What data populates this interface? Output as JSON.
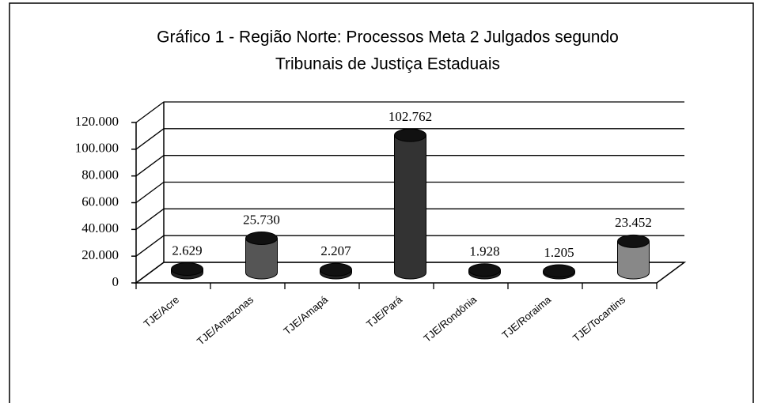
{
  "chart_data": {
    "type": "bar3d",
    "title": "Gráfico 1 - Região Norte: Processos Meta 2 Julgados segundo",
    "subtitle": "Tribunais de Justiça Estaduais",
    "categories": [
      "TJE/Acre",
      "TJE/Amazonas",
      "TJE/Amapá",
      "TJE/Pará",
      "TJE/Rondônia",
      "TJE/Roraima",
      "TJE/Tocantins"
    ],
    "values": [
      2629,
      25730,
      2207,
      102762,
      1928,
      1205,
      23452
    ],
    "value_labels": [
      "2.629",
      "25.730",
      "2.207",
      "102.762",
      "1.928",
      "1.205",
      "23.452"
    ],
    "colors": [
      "#222222",
      "#555555",
      "#222222",
      "#333333",
      "#222222",
      "#222222",
      "#888888"
    ],
    "ylim": [
      0,
      120000
    ],
    "yticks": [
      0,
      {
        "value": 20000,
        "label": "20.000"
      },
      {
        "value": 40000,
        "label": "40.000"
      },
      {
        "value": 60000,
        "label": "60.000"
      },
      {
        "value": 80000,
        "label": "80.000"
      },
      {
        "value": 100000,
        "label": "100.000"
      },
      {
        "value": 120000,
        "label": "120.000"
      }
    ],
    "grid": true
  }
}
